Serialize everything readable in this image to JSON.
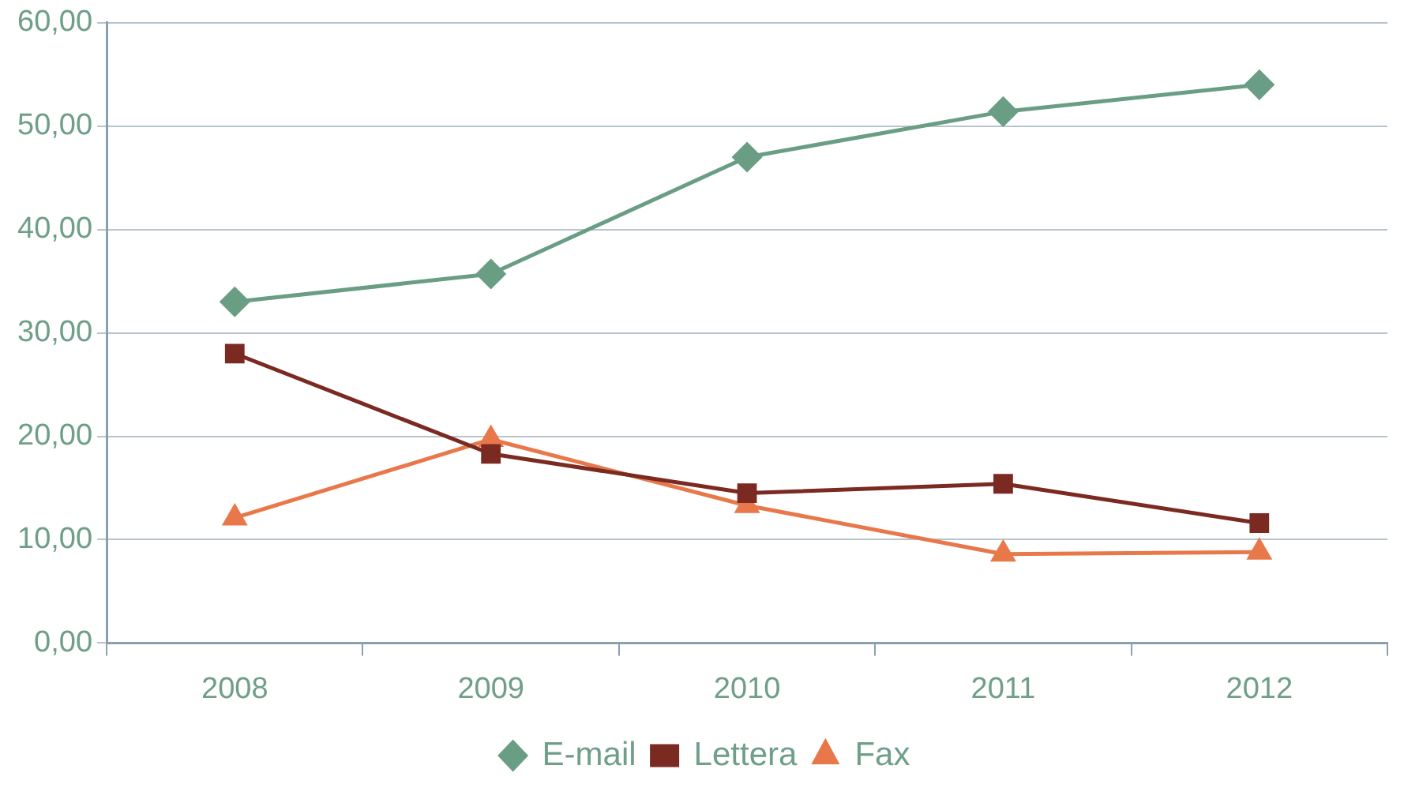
{
  "chart_data": {
    "type": "line",
    "categories": [
      "2008",
      "2009",
      "2010",
      "2011",
      "2012"
    ],
    "series": [
      {
        "name": "E-mail",
        "color": "#6a9e84",
        "marker": "diamond",
        "values": [
          33.0,
          35.7,
          47.0,
          51.4,
          54.0
        ]
      },
      {
        "name": "Lettera",
        "color": "#7b2a22",
        "marker": "square",
        "values": [
          28.0,
          18.3,
          14.5,
          15.4,
          11.6
        ]
      },
      {
        "name": "Fax",
        "color": "#e8784a",
        "marker": "triangle",
        "values": [
          12.1,
          19.7,
          13.3,
          8.6,
          8.8
        ]
      }
    ],
    "ylim": [
      0,
      60
    ],
    "yticks": [
      {
        "value": 0,
        "label": "0,00"
      },
      {
        "value": 10,
        "label": "10,00"
      },
      {
        "value": 20,
        "label": "20,00"
      },
      {
        "value": 30,
        "label": "30,00"
      },
      {
        "value": 40,
        "label": "40,00"
      },
      {
        "value": 50,
        "label": "50,00"
      },
      {
        "value": 60,
        "label": "60,00"
      }
    ],
    "grid": "y",
    "legend": "bottom",
    "line_style": "solid"
  }
}
